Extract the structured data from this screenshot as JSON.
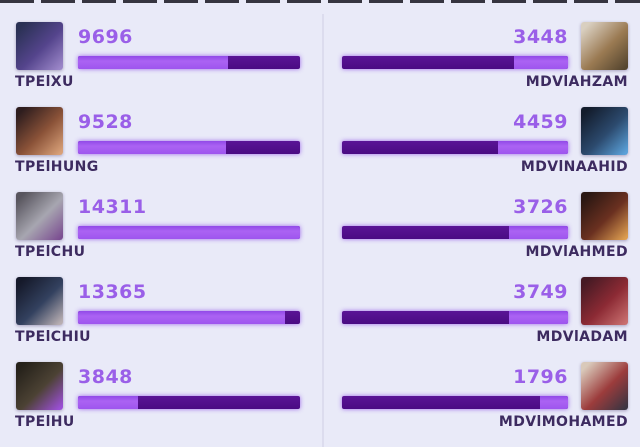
{
  "page": {
    "background": "#e9eaf8",
    "divider_color": "#dcdcee",
    "top_strip_color": "#17151f",
    "description": "damage-comparison-stats-panel"
  },
  "bars": {
    "light_fill_color": "#a35cf0",
    "dark_track_color": "#4b0c85",
    "max_value": 14311
  },
  "chart_data": {
    "type": "bar",
    "series": [
      {
        "name": "left-team",
        "categories": [
          "TPElXU",
          "TPElHUNG",
          "TPElCHU",
          "TPElCHIU",
          "TPElHU"
        ],
        "values": [
          9696,
          9528,
          14311,
          13365,
          3848
        ]
      },
      {
        "name": "right-team",
        "categories": [
          "MDVlAHZAM",
          "MDVlNAAHID",
          "MDVlAHMED",
          "MDVlADAM",
          "MDVlMOHAMED"
        ],
        "values": [
          3448,
          4459,
          3726,
          3749,
          1796
        ]
      }
    ],
    "xlim": [
      0,
      14311
    ],
    "title": "",
    "legend": "none"
  },
  "teams": {
    "left": {
      "players": [
        {
          "name": "TPElXU",
          "value": 9696,
          "avatar": [
            "#2a3154",
            "#54448c",
            "#9b86c8"
          ]
        },
        {
          "name": "TPElHUNG",
          "value": 9528,
          "avatar": [
            "#2e1d1e",
            "#8a5238",
            "#d8a078"
          ]
        },
        {
          "name": "TPElCHU",
          "value": 14311,
          "avatar": [
            "#58555e",
            "#a7a6b0",
            "#7c4f92"
          ]
        },
        {
          "name": "TPElCHIU",
          "value": 13365,
          "avatar": [
            "#15192a",
            "#33415f",
            "#b8aeb2"
          ]
        },
        {
          "name": "TPElHU",
          "value": 3848,
          "avatar": [
            "#25211a",
            "#4c4234",
            "#9b4fd6"
          ]
        }
      ]
    },
    "right": {
      "players": [
        {
          "name": "MDVlAHZAM",
          "value": 3448,
          "avatar": [
            "#d9cfc0",
            "#9a7a52",
            "#55452f"
          ]
        },
        {
          "name": "MDVlNAAHID",
          "value": 4459,
          "avatar": [
            "#131c2c",
            "#2c4a6e",
            "#5aa0d8"
          ]
        },
        {
          "name": "MDVlAHMED",
          "value": 3726,
          "avatar": [
            "#2a1712",
            "#6a3020",
            "#dc9c50"
          ]
        },
        {
          "name": "MDVlADAM",
          "value": 3749,
          "avatar": [
            "#461a24",
            "#8c2a34",
            "#c86e6e"
          ]
        },
        {
          "name": "MDVlMOHAMED",
          "value": 1796,
          "avatar": [
            "#d9c9ba",
            "#9c3c3c",
            "#3b3542"
          ]
        }
      ]
    }
  }
}
